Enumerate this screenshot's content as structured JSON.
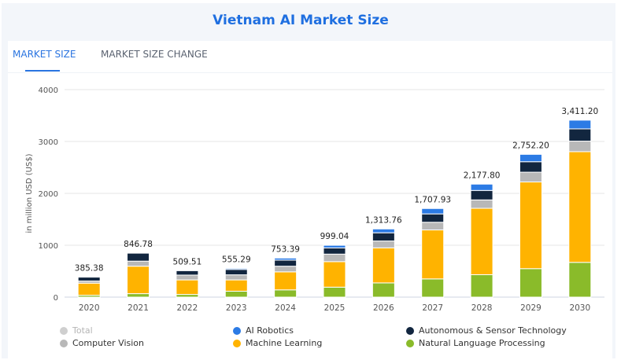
{
  "title": "Vietnam AI Market Size",
  "tabs": [
    {
      "label": "MARKET SIZE",
      "active": true
    },
    {
      "label": "MARKET SIZE CHANGE",
      "active": false
    }
  ],
  "chart_data": {
    "type": "bar",
    "stacked": true,
    "ylabel": "in million USD (US$)",
    "ylim": [
      0,
      4000
    ],
    "yticks": [
      "0",
      "1000",
      "2000",
      "3000",
      "4000"
    ],
    "grid": true,
    "legend_position": "bottom",
    "categories": [
      "2020",
      "2021",
      "2022",
      "2023",
      "2024",
      "2025",
      "2026",
      "2027",
      "2028",
      "2029",
      "2030"
    ],
    "totals": [
      "385.38",
      "846.78",
      "509.51",
      "555.29",
      "753.39",
      "999.04",
      "1,313.76",
      "1,707.93",
      "2,177.80",
      "2,752.20",
      "3,411.20"
    ],
    "series": [
      {
        "name": "Natural Language Processing",
        "color": "#8abb2a",
        "values": [
          36,
          67,
          52,
          114,
          140,
          192,
          274,
          351,
          432,
          549,
          670
        ]
      },
      {
        "name": "Machine Learning",
        "color": "#ffb300",
        "values": [
          233,
          529,
          280,
          218,
          347,
          492,
          676,
          944,
          1280,
          1671,
          2134
        ]
      },
      {
        "name": "Computer Vision",
        "color": "#b8b8b8",
        "values": [
          42,
          98,
          93,
          98,
          109,
          145,
          132,
          148,
          162,
          188,
          203
        ]
      },
      {
        "name": "Autonomous & Sensor Technology",
        "color": "#12263f",
        "values": [
          74,
          153,
          84,
          104,
          117,
          119,
          158,
          161,
          182,
          202,
          236
        ]
      },
      {
        "name": "AI Robotics",
        "color": "#2c7be5",
        "values": [
          0,
          0,
          0,
          21,
          40,
          51,
          74,
          104,
          122,
          142,
          168
        ]
      }
    ],
    "legend": [
      {
        "name": "Total",
        "color": "#cfcfcf",
        "disabled": true
      },
      {
        "name": "AI Robotics",
        "color": "#2c7be5"
      },
      {
        "name": "Autonomous & Sensor Technology",
        "color": "#12263f"
      },
      {
        "name": "Computer Vision",
        "color": "#b8b8b8"
      },
      {
        "name": "Machine Learning",
        "color": "#ffb300"
      },
      {
        "name": "Natural Language Processing",
        "color": "#8abb2a"
      }
    ]
  }
}
